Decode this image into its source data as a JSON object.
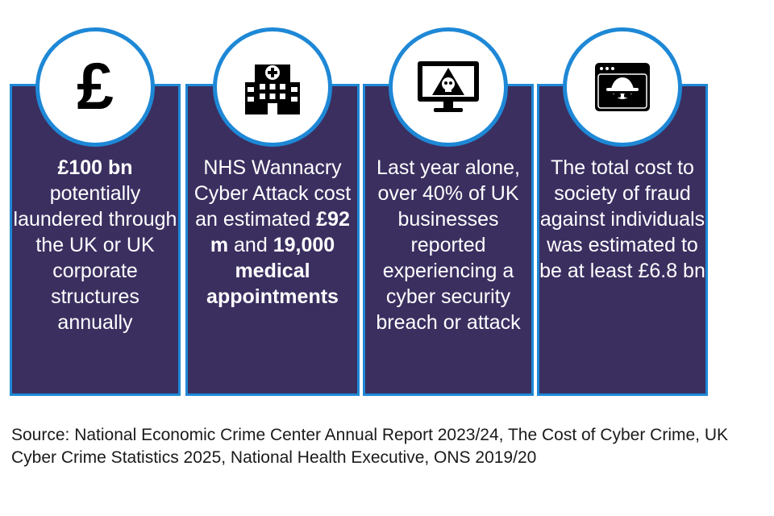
{
  "cards": [
    {
      "icon": "pound-sign-icon",
      "icon_glyph": "£",
      "bold_lead": "£100 bn",
      "text": "potentially laundered through the UK or UK corporate structures annually"
    },
    {
      "icon": "hospital-icon",
      "text_before": "NHS Wannacry Cyber Attack cost an estimated",
      "bold_amount": "£92 m",
      "conjunction": "and",
      "bold_tail": "19,000 medical appointments"
    },
    {
      "icon": "monitor-skull-icon",
      "text": "Last year alone, over 40% of UK businesses reported experiencing a cyber security breach or attack"
    },
    {
      "icon": "hacker-browser-icon",
      "text": "The total cost to society of fraud against individuals was estimated to be at least £6.8 bn"
    }
  ],
  "colors": {
    "card_fill": "#3b2f60",
    "accent": "#1e88d6",
    "text_on_card": "#ffffff"
  },
  "source": "Source: National Economic Crime Center Annual Report 2023/24, The Cost of Cyber Crime, UK Cyber Crime Statistics 2025, National Health Executive, ONS 2019/20"
}
